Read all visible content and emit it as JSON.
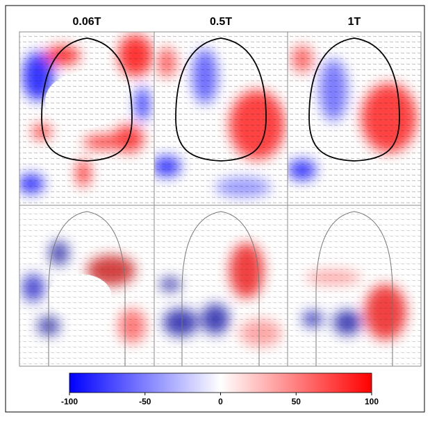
{
  "titles": [
    "0.06T",
    "0.5T",
    "1T"
  ],
  "colorbar": {
    "min": -100,
    "max": 100,
    "ticks": [
      -100,
      -50,
      0,
      50,
      100
    ],
    "low_color": "#0000ff",
    "mid_color": "#ffffff",
    "high_color": "#ff0000"
  }
}
